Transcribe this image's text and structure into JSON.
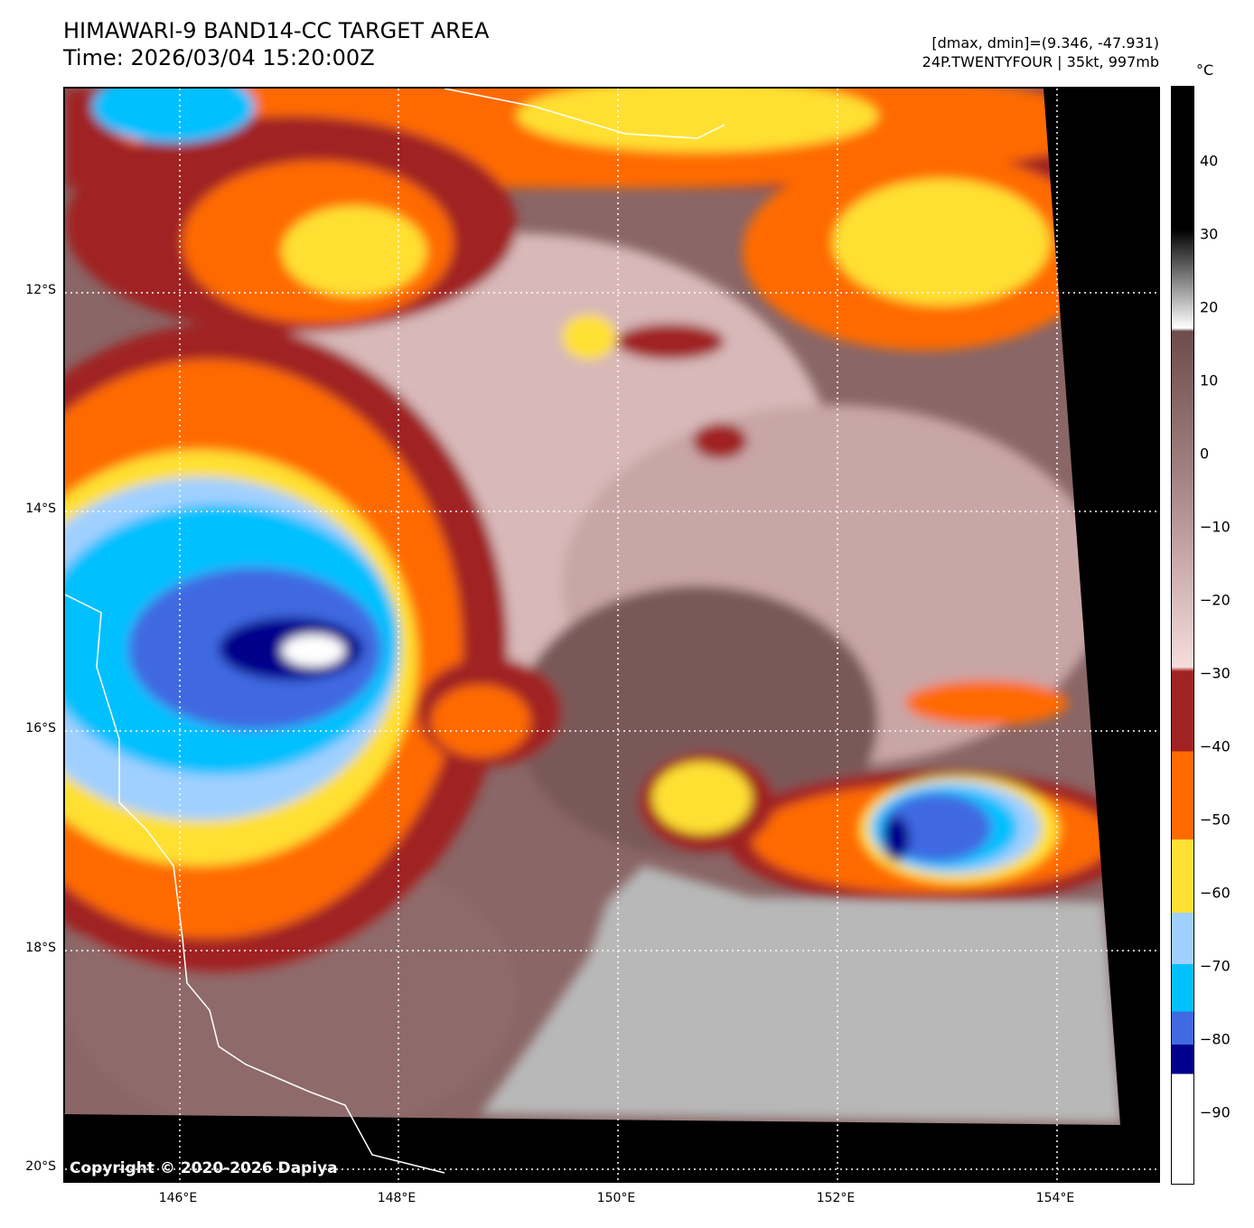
{
  "header": {
    "title": "HIMAWARI-9 BAND14-CC TARGET AREA",
    "time": "Time: 2026/03/04 15:20:00Z",
    "range": "[dmax, dmin]=(9.346, -47.931)",
    "storm": "24P.TWENTYFOUR | 35kt, 997mb"
  },
  "map": {
    "copyright": "Copyright © 2020-2026 Dapiya",
    "lat_labels": [
      "12°S",
      "14°S",
      "16°S",
      "18°S",
      "20°S"
    ],
    "lon_labels": [
      "146°E",
      "148°E",
      "150°E",
      "152°E",
      "154°E"
    ],
    "extent": {
      "lon": [
        144.95,
        154.95
      ],
      "lat": [
        -20.14,
        -10.14
      ]
    }
  },
  "colorbar": {
    "unit": "°C",
    "range": [
      -100,
      50
    ],
    "ticks": [
      "40",
      "30",
      "20",
      "10",
      "0",
      "−10",
      "−20",
      "−30",
      "−40",
      "−50",
      "−60",
      "−70",
      "−80",
      "−90"
    ],
    "colors": {
      "red": "#a02222",
      "orange": "#ff6a00",
      "yellow": "#ffe033",
      "lightblue": "#a0d0ff",
      "cyan": "#00c0ff",
      "blue": "#4169e1",
      "navy": "#00008b",
      "brown": "#6e4c4c",
      "pink": "#f7dcdc"
    }
  }
}
